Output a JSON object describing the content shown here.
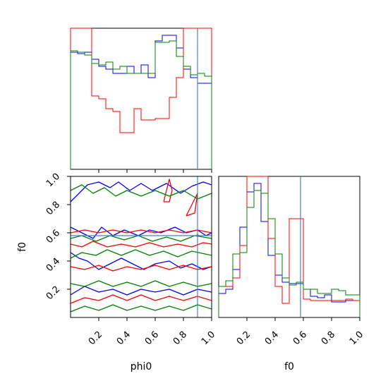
{
  "chart_data": {
    "type": "corner",
    "parameters": [
      "phi0",
      "f0"
    ],
    "truths": {
      "phi0": 0.9,
      "f0": 0.58
    },
    "truth_color": "#4682b4",
    "series": [
      {
        "color": "#0000ff"
      },
      {
        "color": "#ff0000"
      },
      {
        "color": "#008000"
      }
    ],
    "axes": {
      "phi0": {
        "label": "phi0",
        "range": [
          0,
          1
        ],
        "ticks": [
          0.2,
          0.4,
          0.6,
          0.8,
          1.0
        ],
        "tick_labels": [
          "0.2",
          "0.4",
          "0.6",
          "0.8",
          "1.0"
        ]
      },
      "f0": {
        "label": "f0",
        "range": [
          0,
          1
        ],
        "ticks": [
          0.2,
          0.4,
          0.6,
          0.8,
          1.0
        ],
        "tick_labels": [
          "0.2",
          "0.4",
          "0.6",
          "0.8",
          "1.0"
        ]
      }
    },
    "hist_phi0": {
      "bin_edges": [
        0,
        0.05,
        0.1,
        0.15,
        0.2,
        0.25,
        0.3,
        0.35,
        0.4,
        0.45,
        0.5,
        0.55,
        0.6,
        0.65,
        0.7,
        0.75,
        0.8,
        0.85,
        0.9,
        0.95,
        1.0
      ],
      "ymax": 1.0,
      "blue": [
        0.83,
        0.82,
        0.83,
        0.78,
        0.73,
        0.71,
        0.68,
        0.68,
        0.73,
        0.68,
        0.74,
        0.65,
        0.91,
        0.95,
        0.95,
        0.86,
        0.71,
        0.65,
        0.61,
        0.61
      ],
      "red": [
        1.0,
        1.0,
        1.0,
        0.52,
        0.5,
        0.43,
        0.41,
        0.26,
        0.26,
        0.43,
        0.35,
        0.35,
        0.36,
        0.36,
        0.51,
        0.65,
        1.0,
        1.0,
        1.0,
        1.0
      ],
      "green": [
        0.84,
        0.83,
        0.81,
        0.75,
        0.74,
        0.76,
        0.71,
        0.73,
        0.68,
        0.68,
        0.68,
        0.68,
        0.9,
        0.9,
        0.91,
        0.8,
        0.73,
        0.67,
        0.68,
        0.66
      ]
    },
    "hist_f0": {
      "bin_edges": [
        0,
        0.05,
        0.1,
        0.15,
        0.2,
        0.25,
        0.3,
        0.35,
        0.4,
        0.45,
        0.5,
        0.55,
        0.6,
        0.65,
        0.7,
        0.75,
        0.8,
        0.85,
        0.9,
        0.95,
        1.0
      ],
      "ymax": 1.0,
      "blue": [
        0.17,
        0.2,
        0.34,
        0.64,
        0.89,
        0.95,
        0.68,
        0.44,
        0.3,
        0.25,
        0.24,
        0.24,
        0.2,
        0.15,
        0.14,
        0.16,
        0.11,
        0.11,
        0.12,
        0.12
      ],
      "red": [
        0.22,
        0.22,
        0.28,
        0.51,
        1.0,
        1.0,
        1.0,
        0.56,
        0.22,
        0.1,
        0.7,
        0.7,
        0.13,
        0.12,
        0.12,
        0.12,
        0.12,
        0.12,
        0.13,
        0.12
      ],
      "green": [
        0.22,
        0.26,
        0.45,
        0.46,
        0.78,
        0.9,
        0.88,
        0.7,
        0.45,
        0.28,
        0.23,
        0.25,
        0.2,
        0.2,
        0.17,
        0.17,
        0.2,
        0.19,
        0.16,
        0.16
      ]
    },
    "contours_phi0_f0": [
      {
        "color": "#0000ff",
        "lines": [
          [
            [
              0.0,
              0.82
            ],
            [
              0.06,
              0.88
            ],
            [
              0.12,
              0.94
            ],
            [
              0.2,
              0.96
            ],
            [
              0.28,
              0.92
            ],
            [
              0.34,
              0.96
            ],
            [
              0.42,
              0.9
            ],
            [
              0.5,
              0.95
            ],
            [
              0.58,
              0.9
            ],
            [
              0.68,
              0.95
            ],
            [
              0.78,
              0.88
            ],
            [
              0.86,
              0.93
            ],
            [
              0.94,
              0.96
            ],
            [
              1.0,
              0.94
            ]
          ],
          [
            [
              0.0,
              0.64
            ],
            [
              0.08,
              0.6
            ],
            [
              0.16,
              0.56
            ],
            [
              0.22,
              0.64
            ],
            [
              0.3,
              0.58
            ],
            [
              0.38,
              0.62
            ],
            [
              0.48,
              0.58
            ],
            [
              0.56,
              0.62
            ],
            [
              0.64,
              0.6
            ],
            [
              0.74,
              0.64
            ],
            [
              0.82,
              0.6
            ],
            [
              0.9,
              0.62
            ],
            [
              0.96,
              0.58
            ],
            [
              1.0,
              0.6
            ]
          ],
          [
            [
              0.0,
              0.46
            ],
            [
              0.06,
              0.42
            ],
            [
              0.12,
              0.4
            ],
            [
              0.2,
              0.34
            ],
            [
              0.28,
              0.38
            ],
            [
              0.36,
              0.42
            ],
            [
              0.44,
              0.38
            ],
            [
              0.52,
              0.34
            ],
            [
              0.6,
              0.38
            ],
            [
              0.7,
              0.4
            ],
            [
              0.78,
              0.35
            ],
            [
              0.86,
              0.38
            ],
            [
              0.94,
              0.34
            ],
            [
              1.0,
              0.36
            ]
          ],
          [
            [
              0.0,
              0.16
            ],
            [
              0.1,
              0.22
            ],
            [
              0.2,
              0.18
            ],
            [
              0.3,
              0.2
            ],
            [
              0.4,
              0.16
            ],
            [
              0.5,
              0.2
            ],
            [
              0.6,
              0.18
            ],
            [
              0.7,
              0.2
            ],
            [
              0.8,
              0.16
            ],
            [
              0.9,
              0.2
            ],
            [
              1.0,
              0.18
            ]
          ]
        ]
      },
      {
        "color": "#ff0000",
        "lines": [
          [
            [
              0.0,
              0.6
            ],
            [
              0.1,
              0.62
            ],
            [
              0.2,
              0.6
            ],
            [
              0.3,
              0.62
            ],
            [
              0.4,
              0.6
            ],
            [
              0.5,
              0.62
            ],
            [
              0.6,
              0.6
            ],
            [
              0.7,
              0.62
            ],
            [
              0.8,
              0.6
            ],
            [
              0.9,
              0.62
            ],
            [
              1.0,
              0.6
            ]
          ],
          [
            [
              0.0,
              0.52
            ],
            [
              0.08,
              0.5
            ],
            [
              0.16,
              0.54
            ],
            [
              0.26,
              0.5
            ],
            [
              0.36,
              0.52
            ],
            [
              0.46,
              0.5
            ],
            [
              0.56,
              0.53
            ],
            [
              0.66,
              0.5
            ],
            [
              0.76,
              0.52
            ],
            [
              0.86,
              0.5
            ],
            [
              0.94,
              0.53
            ],
            [
              1.0,
              0.52
            ]
          ],
          [
            [
              0.0,
              0.36
            ],
            [
              0.1,
              0.34
            ],
            [
              0.2,
              0.37
            ],
            [
              0.3,
              0.33
            ],
            [
              0.4,
              0.36
            ],
            [
              0.5,
              0.34
            ],
            [
              0.6,
              0.37
            ],
            [
              0.7,
              0.34
            ],
            [
              0.8,
              0.37
            ],
            [
              0.9,
              0.34
            ],
            [
              1.0,
              0.36
            ]
          ],
          [
            [
              0.0,
              0.1
            ],
            [
              0.1,
              0.14
            ],
            [
              0.2,
              0.12
            ],
            [
              0.3,
              0.16
            ],
            [
              0.4,
              0.12
            ],
            [
              0.5,
              0.16
            ],
            [
              0.6,
              0.12
            ],
            [
              0.7,
              0.15
            ],
            [
              0.8,
              0.12
            ],
            [
              0.9,
              0.15
            ],
            [
              1.0,
              0.12
            ]
          ],
          [
            [
              0.66,
              0.82
            ],
            [
              0.68,
              0.9
            ],
            [
              0.7,
              0.98
            ],
            [
              0.72,
              0.9
            ],
            [
              0.7,
              0.82
            ],
            [
              0.66,
              0.82
            ]
          ],
          [
            [
              0.82,
              0.72
            ],
            [
              0.86,
              0.8
            ],
            [
              0.9,
              0.88
            ],
            [
              0.88,
              0.74
            ],
            [
              0.82,
              0.72
            ]
          ]
        ]
      },
      {
        "color": "#008000",
        "lines": [
          [
            [
              0.0,
              0.9
            ],
            [
              0.08,
              0.94
            ],
            [
              0.16,
              0.88
            ],
            [
              0.24,
              0.92
            ],
            [
              0.32,
              0.86
            ],
            [
              0.4,
              0.9
            ],
            [
              0.5,
              0.86
            ],
            [
              0.6,
              0.9
            ],
            [
              0.7,
              0.86
            ],
            [
              0.8,
              0.9
            ],
            [
              0.9,
              0.84
            ],
            [
              1.0,
              0.88
            ]
          ],
          [
            [
              0.0,
              0.56
            ],
            [
              0.08,
              0.58
            ],
            [
              0.18,
              0.54
            ],
            [
              0.28,
              0.58
            ],
            [
              0.38,
              0.55
            ],
            [
              0.48,
              0.58
            ],
            [
              0.58,
              0.54
            ],
            [
              0.68,
              0.57
            ],
            [
              0.78,
              0.54
            ],
            [
              0.88,
              0.58
            ],
            [
              1.0,
              0.56
            ]
          ],
          [
            [
              0.0,
              0.42
            ],
            [
              0.08,
              0.46
            ],
            [
              0.18,
              0.44
            ],
            [
              0.26,
              0.48
            ],
            [
              0.36,
              0.44
            ],
            [
              0.46,
              0.48
            ],
            [
              0.56,
              0.44
            ],
            [
              0.66,
              0.47
            ],
            [
              0.76,
              0.43
            ],
            [
              0.86,
              0.47
            ],
            [
              1.0,
              0.44
            ]
          ],
          [
            [
              0.0,
              0.24
            ],
            [
              0.1,
              0.22
            ],
            [
              0.2,
              0.26
            ],
            [
              0.3,
              0.22
            ],
            [
              0.4,
              0.25
            ],
            [
              0.5,
              0.22
            ],
            [
              0.6,
              0.26
            ],
            [
              0.7,
              0.22
            ],
            [
              0.8,
              0.25
            ],
            [
              0.9,
              0.22
            ],
            [
              1.0,
              0.24
            ]
          ],
          [
            [
              0.0,
              0.04
            ],
            [
              0.1,
              0.08
            ],
            [
              0.2,
              0.05
            ],
            [
              0.3,
              0.09
            ],
            [
              0.4,
              0.05
            ],
            [
              0.5,
              0.08
            ],
            [
              0.6,
              0.05
            ],
            [
              0.7,
              0.08
            ],
            [
              0.8,
              0.05
            ],
            [
              0.9,
              0.09
            ],
            [
              1.0,
              0.06
            ]
          ]
        ]
      }
    ],
    "grid": false,
    "legend": "none"
  }
}
